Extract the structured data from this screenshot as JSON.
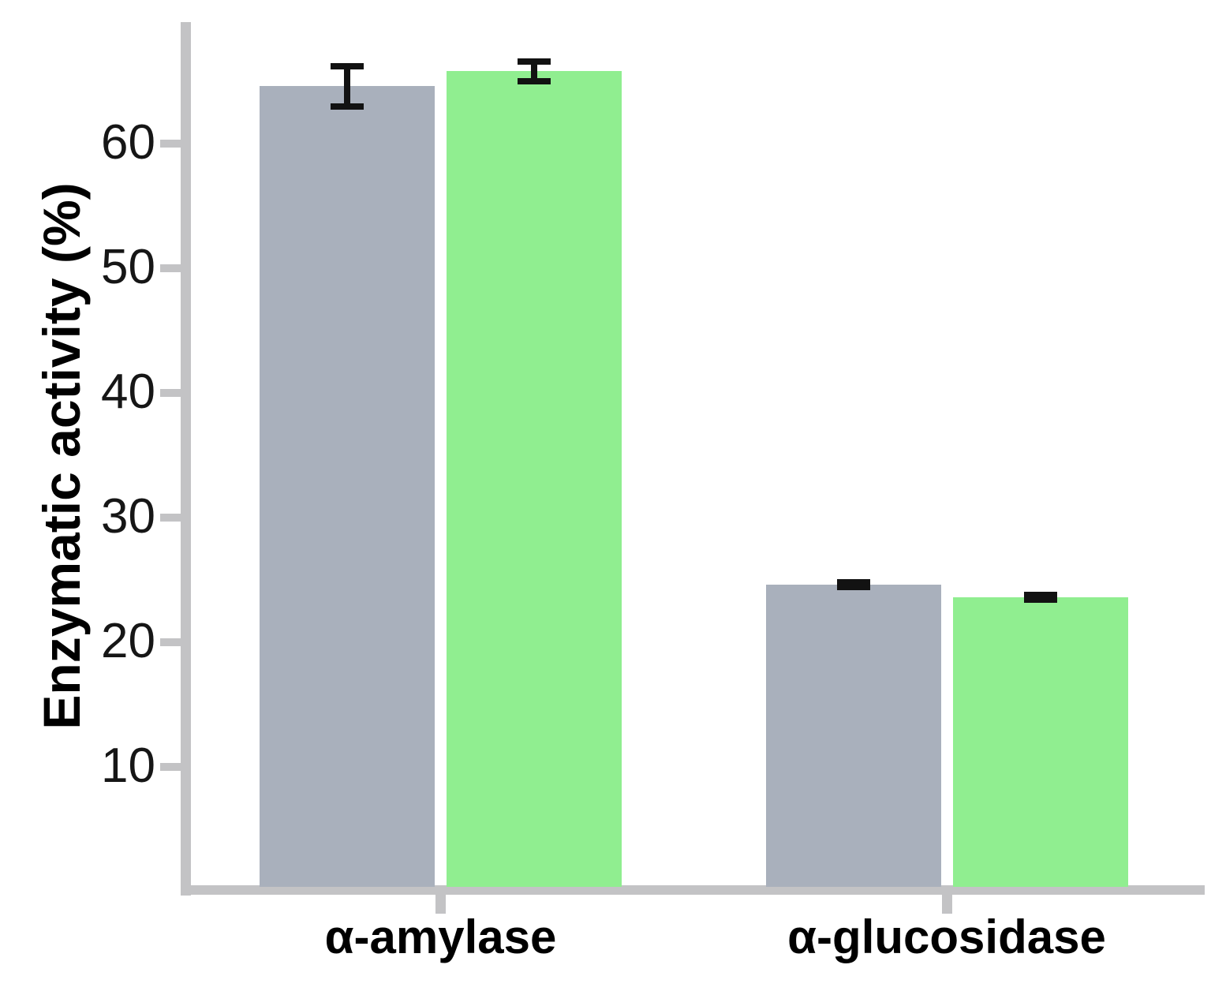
{
  "chart_data": {
    "type": "bar",
    "title": "",
    "xlabel": "",
    "ylabel": "Enzymatic activity (%)",
    "categories": [
      "α-amylase",
      "α-glucosidase"
    ],
    "series": [
      {
        "name": "gray-series",
        "color": "#a9b0bc",
        "values": [
          64.6,
          24.6
        ],
        "errors": [
          1.6,
          0.2
        ]
      },
      {
        "name": "green-series",
        "color": "#90ee90",
        "values": [
          65.8,
          23.6
        ],
        "errors": [
          0.8,
          0.2
        ]
      }
    ],
    "y_ticks": [
      10,
      20,
      30,
      40,
      50,
      60
    ],
    "ylim": [
      0,
      70
    ],
    "grid": false,
    "legend": "none",
    "error_bar_color": "#121212",
    "axis_color": "#c3c3c5",
    "text_color": "#000000"
  }
}
